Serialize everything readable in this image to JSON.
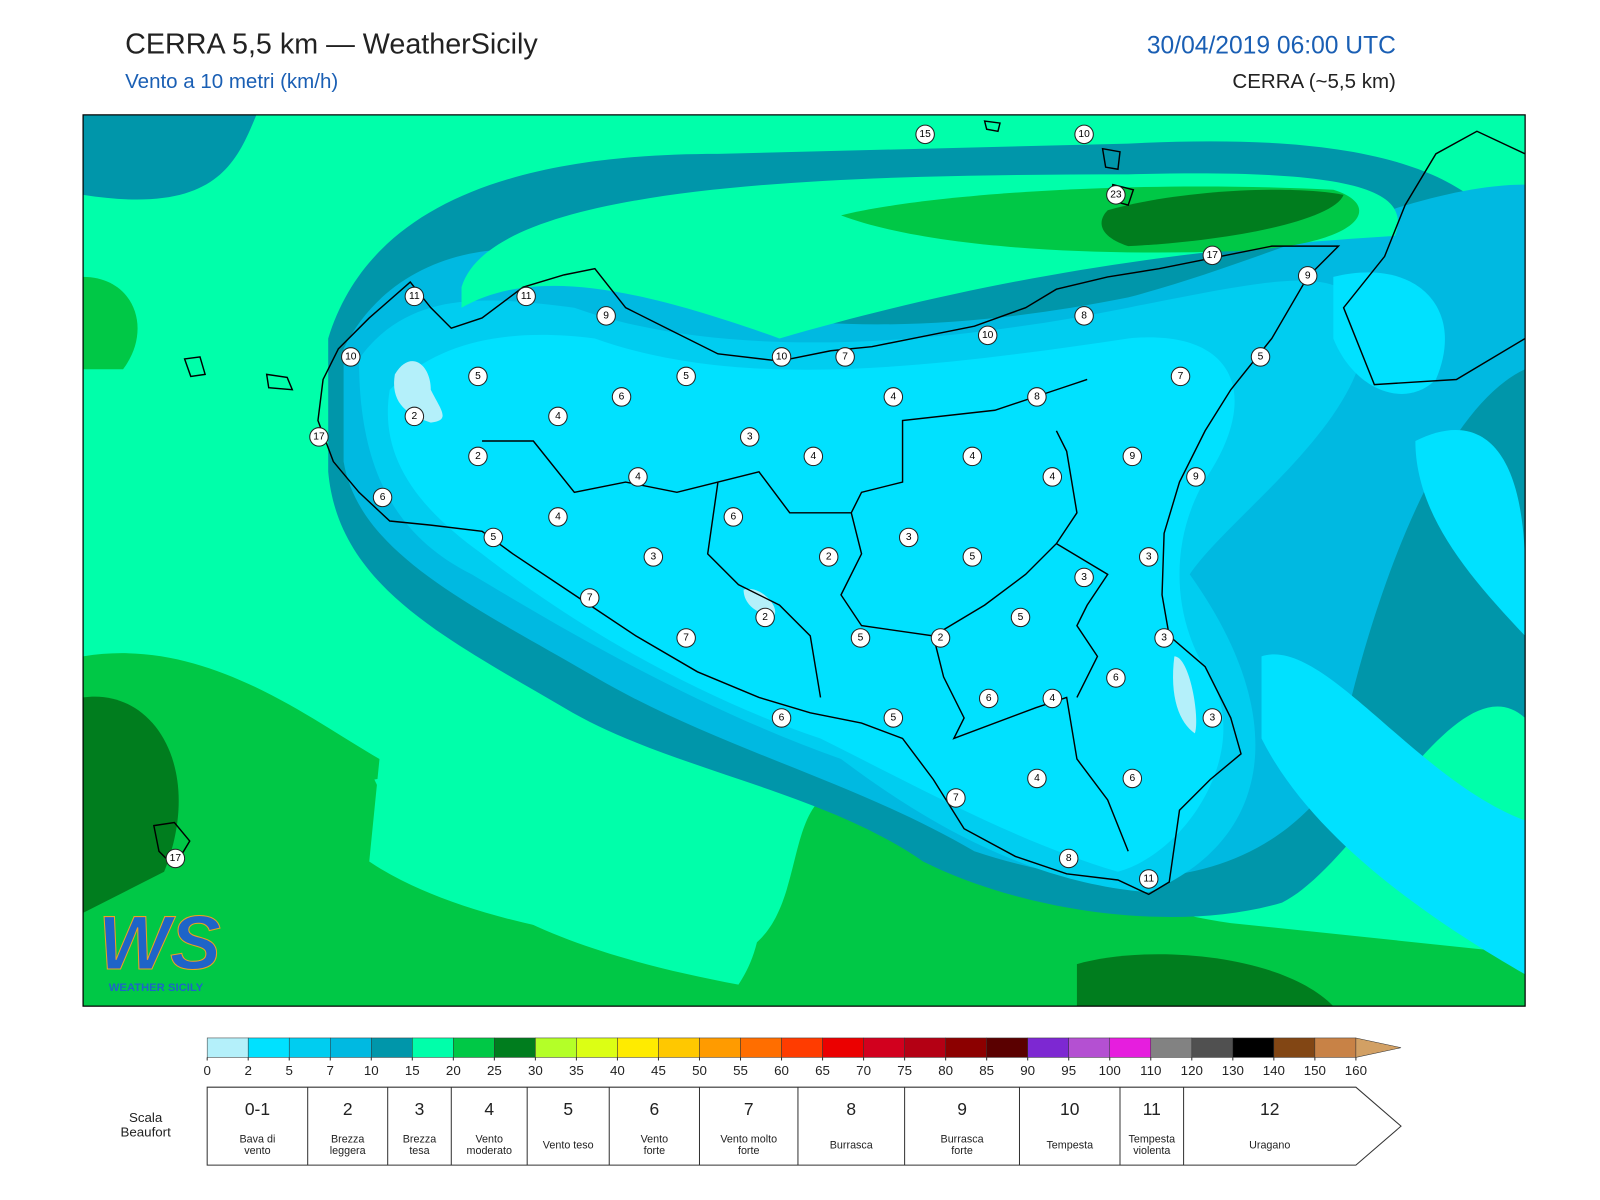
{
  "header": {
    "title": "CERRA 5,5 km — WeatherSicily",
    "subtitle": "Vento a 10 metri (km/h)",
    "datetime": "30/04/2019 06:00 UTC",
    "model": "CERRA (~5,5 km)"
  },
  "stations": [
    15,
    10,
    23,
    17,
    9,
    11,
    11,
    9,
    8,
    10,
    10,
    10,
    7,
    5,
    5,
    5,
    7,
    6,
    4,
    8,
    2,
    4,
    3,
    17,
    2,
    4,
    4,
    9,
    4,
    4,
    9,
    6,
    4,
    6,
    5,
    3,
    3,
    2,
    5,
    3,
    3,
    7,
    2,
    5,
    7,
    5,
    2,
    3,
    6,
    6,
    4,
    3,
    6,
    5,
    4,
    6,
    7,
    8,
    11,
    17
  ],
  "logo": {
    "mark": "WS",
    "text": "WEATHER SICILY"
  },
  "colorbar": {
    "ticks": [
      0,
      2,
      5,
      7,
      10,
      15,
      20,
      25,
      30,
      35,
      40,
      45,
      50,
      55,
      60,
      65,
      70,
      75,
      80,
      85,
      90,
      95,
      100,
      110,
      120,
      130,
      140,
      150,
      160
    ],
    "colors": [
      "#b4f0fa",
      "#00e1ff",
      "#00cdf0",
      "#00b9e1",
      "#0096aa",
      "#00ffaa",
      "#00c846",
      "#007d1e",
      "#b4ff28",
      "#dcff14",
      "#ffeb00",
      "#ffc800",
      "#ff9b00",
      "#ff6e00",
      "#ff3c00",
      "#eb0000",
      "#d2001e",
      "#b40014",
      "#8c0000",
      "#5a0000",
      "#7d28d2",
      "#b450d2",
      "#e61ede",
      "#828282",
      "#505050",
      "#000000",
      "#824614",
      "#c88246"
    ],
    "extend_color": "#d2a064"
  },
  "beaufort": {
    "label": [
      "Scala",
      "Beaufort"
    ],
    "classes": [
      {
        "force": "0-1",
        "name": [
          "Bava di",
          "vento"
        ]
      },
      {
        "force": 2,
        "name": [
          "Brezza",
          "leggera"
        ]
      },
      {
        "force": 3,
        "name": [
          "Brezza",
          "tesa"
        ]
      },
      {
        "force": 4,
        "name": [
          "Vento",
          "moderato"
        ]
      },
      {
        "force": 5,
        "name": [
          "Vento teso"
        ]
      },
      {
        "force": 6,
        "name": [
          "Vento",
          "forte"
        ]
      },
      {
        "force": 7,
        "name": [
          "Vento molto",
          "forte"
        ]
      },
      {
        "force": 8,
        "name": [
          "Burrasca"
        ]
      },
      {
        "force": 9,
        "name": [
          "Burrasca",
          "forte"
        ]
      },
      {
        "force": 10,
        "name": [
          "Tempesta"
        ]
      },
      {
        "force": 11,
        "name": [
          "Tempesta",
          "violenta"
        ]
      },
      {
        "force": 12,
        "name": [
          "Uragano"
        ]
      }
    ]
  }
}
